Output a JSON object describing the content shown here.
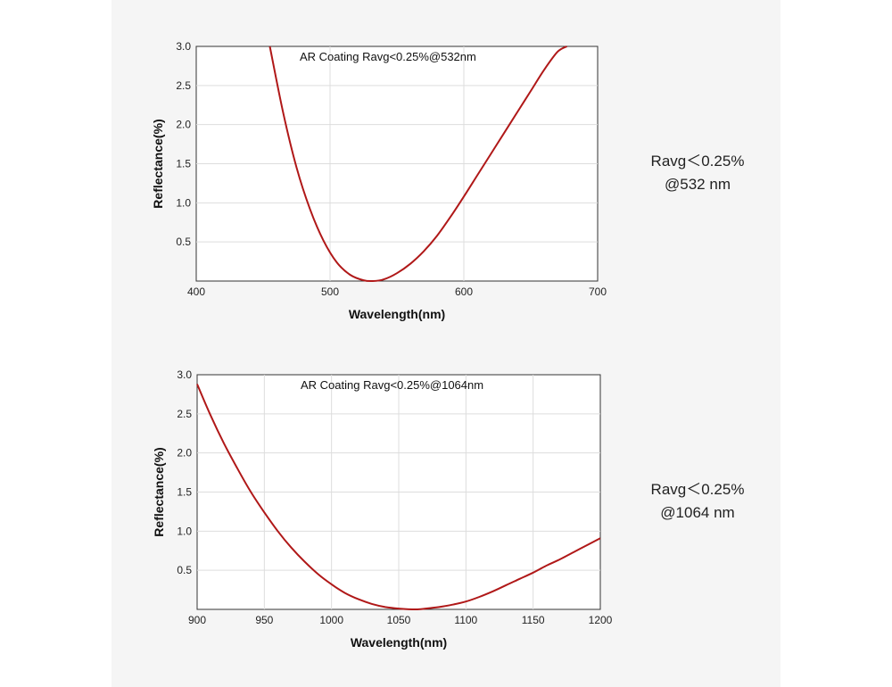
{
  "chart_data": [
    {
      "type": "line",
      "title": "AR Coating Ravg<0.25%@532nm",
      "xlabel": "Wavelength(nm)",
      "ylabel": "Reflectance(%)",
      "xlim": [
        400,
        700
      ],
      "ylim": [
        0,
        3.0
      ],
      "x_ticks": [
        "400",
        "500",
        "600",
        "700"
      ],
      "y_ticks": [
        "0.5",
        "1.0",
        "1.5",
        "2.0",
        "2.5",
        "3.0"
      ],
      "grid": true,
      "line_color": "#b01818",
      "series": [
        {
          "x": [
            455,
            465,
            475,
            485,
            495,
            505,
            515,
            525,
            532,
            540,
            550,
            560,
            570,
            580,
            590,
            600,
            610,
            620,
            630,
            640,
            650,
            660,
            670,
            677
          ],
          "values": [
            3.0,
            2.15,
            1.45,
            0.92,
            0.52,
            0.24,
            0.08,
            0.01,
            0.0,
            0.02,
            0.1,
            0.22,
            0.38,
            0.58,
            0.82,
            1.08,
            1.35,
            1.62,
            1.89,
            2.16,
            2.43,
            2.7,
            2.93,
            3.0
          ]
        }
      ]
    },
    {
      "type": "line",
      "title": "AR Coating Ravg<0.25%@1064nm",
      "xlabel": "Wavelength(nm)",
      "ylabel": "Reflectance(%)",
      "xlim": [
        900,
        1200
      ],
      "ylim": [
        0,
        3.0
      ],
      "x_ticks": [
        "900",
        "950",
        "1000",
        "1050",
        "1100",
        "1150",
        "1200"
      ],
      "y_ticks": [
        "0.5",
        "1.0",
        "1.5",
        "2.0",
        "2.5",
        "3.0"
      ],
      "grid": true,
      "line_color": "#b01818",
      "series": [
        {
          "x": [
            900,
            910,
            920,
            930,
            940,
            950,
            960,
            970,
            980,
            990,
            1000,
            1010,
            1020,
            1030,
            1040,
            1050,
            1060,
            1064,
            1070,
            1080,
            1090,
            1100,
            1110,
            1120,
            1130,
            1140,
            1150,
            1160,
            1170,
            1180,
            1190,
            1200
          ],
          "values": [
            2.88,
            2.48,
            2.12,
            1.8,
            1.5,
            1.24,
            1.0,
            0.79,
            0.61,
            0.45,
            0.32,
            0.21,
            0.13,
            0.07,
            0.03,
            0.01,
            0.0,
            0.0,
            0.01,
            0.03,
            0.06,
            0.1,
            0.16,
            0.23,
            0.31,
            0.39,
            0.47,
            0.56,
            0.64,
            0.73,
            0.82,
            0.91
          ]
        }
      ]
    }
  ],
  "notes": [
    {
      "line1": "Ravg＜0.25%",
      "line2": "@532 nm"
    },
    {
      "line1": "Ravg＜0.25%",
      "line2": "@1064 nm"
    }
  ]
}
